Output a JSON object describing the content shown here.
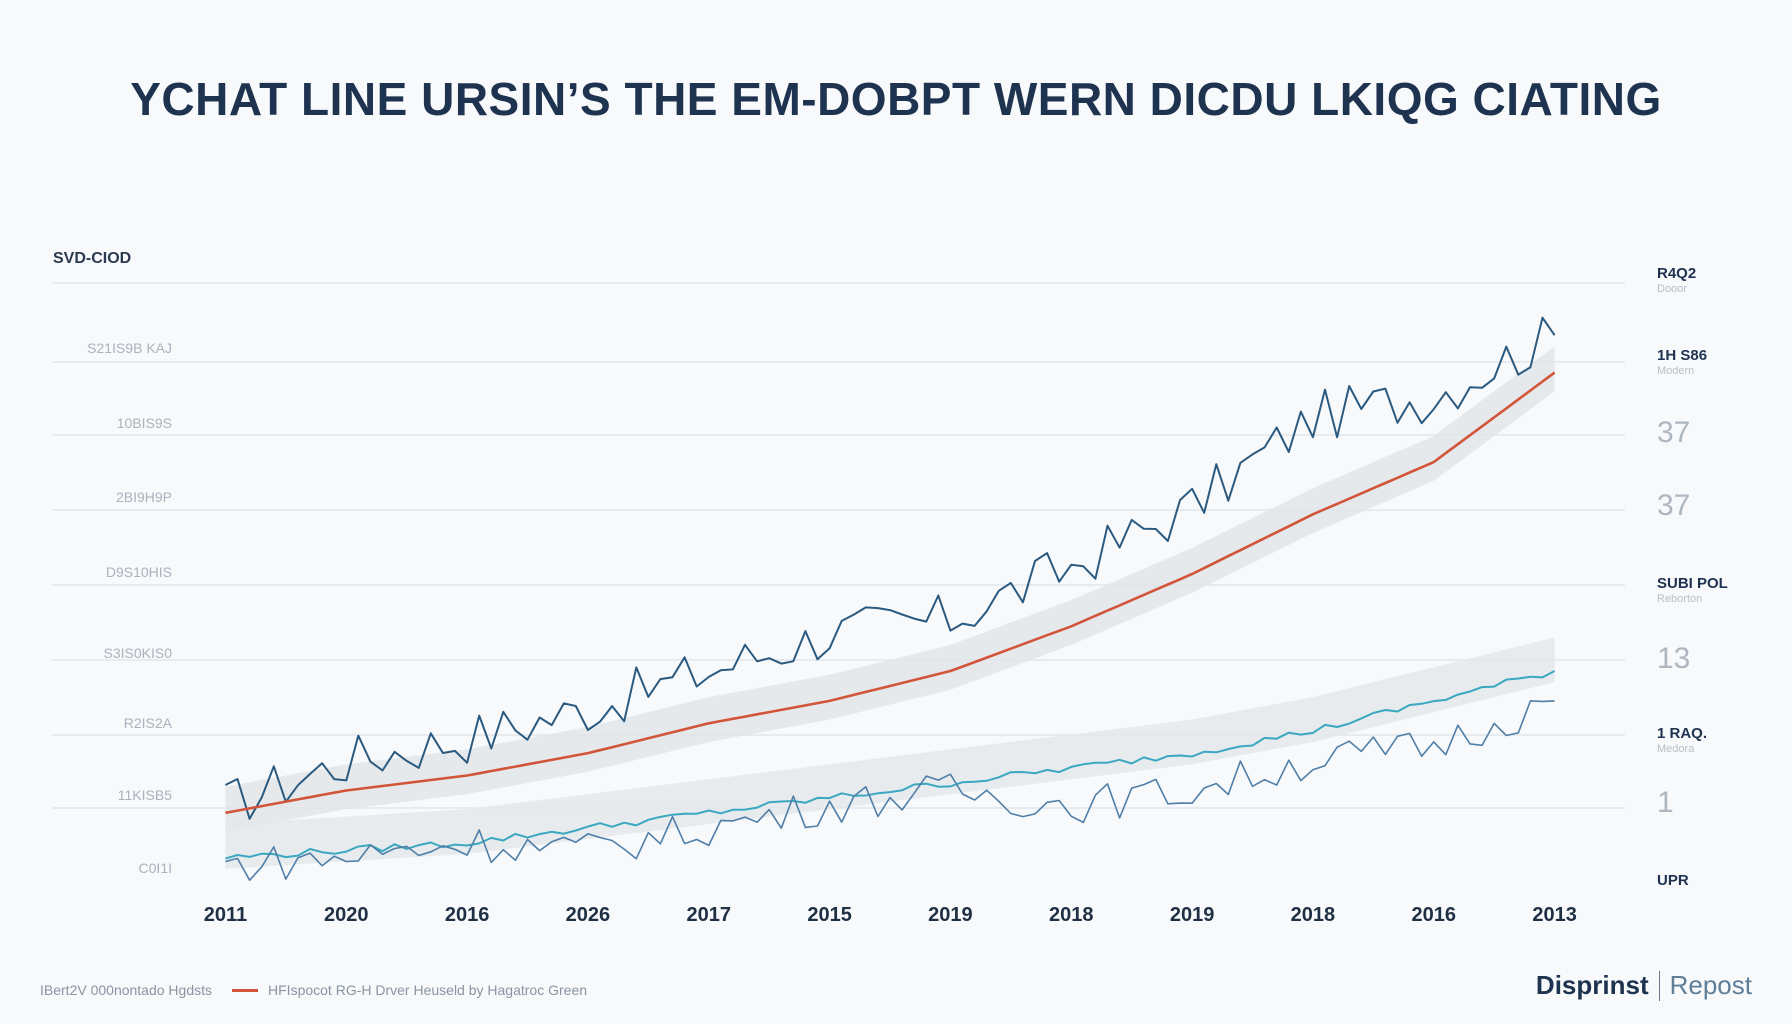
{
  "title": "YCHAT LINE URSIN’S THE EM-DOBPT WERN DICDU LKIQG CIATING",
  "y_header": "SVD-CIOD",
  "left_ticks": [
    "S21IS9B KAJ",
    "10BIS9S",
    "2BI9H9P",
    "D9S10HIS",
    "S3IS0KIS0",
    "R2IS2A",
    "11KISB5",
    "C0I1I"
  ],
  "right_labels": [
    {
      "main": "R4Q2",
      "sub": "Dooor"
    },
    {
      "main": "1H S86",
      "sub": "Modern"
    },
    {
      "main": "37",
      "sub": ""
    },
    {
      "main": "37",
      "sub": ""
    },
    {
      "main": "SUBI POL",
      "sub": "Reborton"
    },
    {
      "main": "13",
      "sub": ""
    },
    {
      "main": "1 RAQ.",
      "sub": "Medora"
    },
    {
      "main": "1",
      "sub": ""
    },
    {
      "main": "UPR",
      "sub": ""
    }
  ],
  "chart_data": {
    "type": "line",
    "title": "YCHAT LINE URSIN’S THE EM-DOBPT WERN DICDU LKIQG CIATING",
    "xlabel": "",
    "ylabel": "SVD-CIOD",
    "categories": [
      "2011",
      "2020",
      "2016",
      "2026",
      "2017",
      "2015",
      "2019",
      "2018",
      "2019",
      "2018",
      "2016",
      "2013"
    ],
    "ylim": [
      0,
      8
    ],
    "grid": true,
    "series": [
      {
        "name": "",
        "color": "#2b5a80",
        "values": [
          1.0,
          1.6,
          1.9,
          2.3,
          2.8,
          3.3,
          3.5,
          4.2,
          5.0,
          6.2,
          6.5,
          7.3
        ]
      },
      {
        "name": "",
        "color": "#d2553a",
        "values": [
          0.9,
          1.2,
          1.4,
          1.7,
          2.1,
          2.4,
          2.8,
          3.4,
          4.1,
          4.9,
          5.6,
          6.8
        ]
      },
      {
        "name": "",
        "color": "#3aa8c0",
        "values": [
          0.3,
          0.4,
          0.5,
          0.7,
          0.9,
          1.1,
          1.3,
          1.5,
          1.7,
          2.0,
          2.4,
          2.8
        ]
      },
      {
        "name": "",
        "color": "#4f7fa8",
        "values": [
          0.2,
          0.3,
          0.5,
          0.4,
          0.7,
          1.0,
          1.2,
          1.0,
          1.2,
          1.6,
          1.8,
          2.4
        ]
      }
    ]
  },
  "footer": {
    "legend_left": "IBert2V 000nontado Hgdsts",
    "legend_right": "HFIspocot RG-H Drver Heuseld by Hagatroc Green"
  },
  "brand": {
    "name": "Disprinst",
    "tag": "Repost"
  }
}
